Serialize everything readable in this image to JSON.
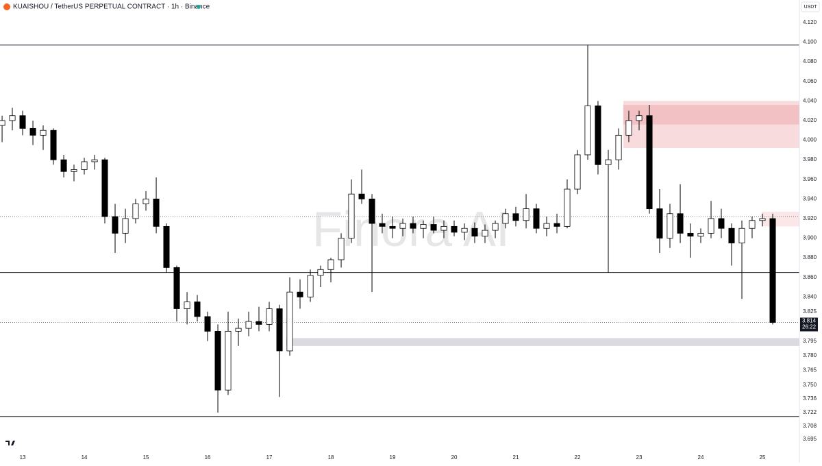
{
  "header": {
    "title": "KUAISHOU / TetherUS PERPETUAL CONTRACT · 1h · Binance",
    "currency": "USDT",
    "watermark": "Finora AI"
  },
  "chart_data": {
    "type": "candlestick",
    "xlim": [
      12.633,
      25.6
    ],
    "xticks": [
      13,
      14,
      15,
      16,
      17,
      18,
      19,
      20,
      21,
      22,
      23,
      24,
      25
    ],
    "ylim": [
      3.685,
      4.143
    ],
    "yticks": [
      {
        "value": 4.12,
        "label": "4.120"
      },
      {
        "value": 4.1,
        "label": "4.100"
      },
      {
        "value": 4.08,
        "label": "4.080"
      },
      {
        "value": 4.06,
        "label": "4.060"
      },
      {
        "value": 4.04,
        "label": "4.040"
      },
      {
        "value": 4.02,
        "label": "4.020"
      },
      {
        "value": 4,
        "label": "4.000"
      },
      {
        "value": 3.98,
        "label": "3.980"
      },
      {
        "value": 3.96,
        "label": "3.960"
      },
      {
        "value": 3.94,
        "label": "3.940"
      },
      {
        "value": 3.92,
        "label": "3.920"
      },
      {
        "value": 3.9,
        "label": "3.900"
      },
      {
        "value": 3.88,
        "label": "3.880"
      },
      {
        "value": 3.86,
        "label": "3.860"
      },
      {
        "value": 3.84,
        "label": "3.840"
      },
      3.825,
      3.795,
      {
        "value": 3.78,
        "label": "3.780"
      },
      3.765,
      {
        "value": 3.75,
        "label": "3.750"
      },
      3.736,
      3.722,
      3.708,
      3.695
    ],
    "up_color": "#ffffff",
    "down_color": "#000000",
    "wick_color": "#000000",
    "x": [
      12.667,
      12.833,
      13.0,
      13.167,
      13.333,
      13.5,
      13.667,
      13.833,
      14.0,
      14.167,
      14.333,
      14.5,
      14.667,
      14.833,
      15.0,
      15.167,
      15.333,
      15.5,
      15.667,
      15.833,
      16.0,
      16.167,
      16.333,
      16.5,
      16.667,
      16.833,
      17.0,
      17.167,
      17.333,
      17.5,
      17.667,
      17.833,
      18.0,
      18.167,
      18.333,
      18.5,
      18.667,
      18.833,
      19.0,
      19.167,
      19.333,
      19.5,
      19.667,
      19.833,
      20.0,
      20.167,
      20.333,
      20.5,
      20.667,
      20.833,
      21.0,
      21.167,
      21.333,
      21.5,
      21.667,
      21.833,
      22.0,
      22.167,
      22.333,
      22.5,
      22.667,
      22.833,
      23.0,
      23.167,
      23.333,
      23.5,
      23.667,
      23.833,
      24.0,
      24.167,
      24.333,
      24.5,
      24.667,
      24.833,
      25.0,
      25.167
    ],
    "open": [
      4.015,
      4.02,
      4.025,
      4.012,
      4.005,
      4.01,
      3.98,
      3.968,
      3.97,
      3.978,
      3.98,
      3.922,
      3.905,
      3.92,
      3.935,
      3.94,
      3.912,
      3.87,
      3.828,
      3.835,
      3.82,
      3.805,
      3.745,
      3.805,
      3.808,
      3.815,
      3.812,
      3.828,
      3.785,
      3.845,
      3.84,
      3.862,
      3.868,
      3.878,
      3.9,
      3.945,
      3.94,
      3.915,
      3.912,
      3.91,
      3.915,
      3.91,
      3.914,
      3.908,
      3.912,
      3.906,
      3.91,
      3.902,
      3.908,
      3.915,
      3.925,
      3.918,
      3.93,
      3.91,
      3.915,
      3.912,
      3.95,
      3.985,
      4.035,
      3.975,
      3.98,
      4.005,
      4.02,
      4.025,
      3.93,
      3.9,
      3.925,
      3.905,
      3.902,
      3.905,
      3.92,
      3.91,
      3.895,
      3.91,
      3.918,
      3.92
    ],
    "high": [
      4.025,
      4.033,
      4.03,
      4.02,
      4.015,
      4.012,
      3.985,
      3.975,
      3.982,
      3.985,
      3.982,
      3.935,
      3.93,
      3.94,
      3.948,
      3.962,
      3.915,
      3.872,
      3.845,
      3.842,
      3.825,
      3.812,
      3.825,
      3.818,
      3.825,
      3.83,
      3.835,
      3.832,
      3.86,
      3.858,
      3.868,
      3.872,
      3.88,
      3.905,
      3.96,
      3.97,
      3.945,
      3.925,
      3.922,
      3.92,
      3.922,
      3.918,
      3.922,
      3.918,
      3.918,
      3.915,
      3.916,
      3.914,
      3.918,
      3.93,
      3.932,
      3.945,
      3.935,
      3.922,
      3.925,
      3.96,
      3.99,
      4.097,
      4.04,
      3.99,
      4.012,
      4.03,
      4.03,
      4.036,
      3.95,
      3.935,
      3.955,
      3.915,
      3.91,
      3.938,
      3.93,
      3.915,
      3.918,
      3.922,
      3.925,
      3.925
    ],
    "low": [
      3.998,
      4.01,
      4.005,
      3.995,
      3.99,
      3.975,
      3.962,
      3.958,
      3.965,
      3.97,
      3.915,
      3.885,
      3.895,
      3.915,
      3.928,
      3.905,
      3.865,
      3.815,
      3.812,
      3.815,
      3.795,
      3.722,
      3.74,
      3.79,
      3.8,
      3.805,
      3.805,
      3.738,
      3.78,
      3.828,
      3.835,
      3.85,
      3.855,
      3.87,
      3.895,
      3.935,
      3.845,
      3.905,
      3.9,
      3.902,
      3.905,
      3.9,
      3.905,
      3.9,
      3.902,
      3.898,
      3.895,
      3.895,
      3.9,
      3.91,
      3.912,
      3.91,
      3.905,
      3.902,
      3.905,
      3.91,
      3.945,
      3.98,
      3.965,
      3.865,
      3.97,
      3.998,
      4.01,
      3.925,
      3.885,
      3.89,
      3.895,
      3.88,
      3.895,
      3.9,
      3.9,
      3.872,
      3.838,
      3.9,
      3.912,
      3.812
    ],
    "close": [
      4.02,
      4.025,
      4.012,
      4.005,
      4.01,
      3.98,
      3.968,
      3.97,
      3.978,
      3.98,
      3.922,
      3.905,
      3.92,
      3.935,
      3.94,
      3.912,
      3.87,
      3.828,
      3.835,
      3.82,
      3.805,
      3.745,
      3.805,
      3.808,
      3.815,
      3.812,
      3.828,
      3.785,
      3.845,
      3.84,
      3.862,
      3.868,
      3.878,
      3.9,
      3.945,
      3.94,
      3.915,
      3.912,
      3.91,
      3.915,
      3.91,
      3.914,
      3.908,
      3.912,
      3.906,
      3.91,
      3.902,
      3.908,
      3.915,
      3.925,
      3.918,
      3.93,
      3.91,
      3.915,
      3.912,
      3.95,
      3.985,
      4.035,
      3.975,
      3.98,
      4.005,
      4.02,
      4.025,
      3.93,
      3.9,
      3.925,
      3.905,
      3.902,
      3.905,
      3.92,
      3.91,
      3.895,
      3.91,
      3.918,
      3.92,
      3.814
    ],
    "levels": [
      {
        "value": 4.097,
        "style": "solid",
        "color": "#131722"
      },
      {
        "value": 3.865,
        "style": "solid",
        "color": "#131722"
      },
      {
        "value": 3.718,
        "style": "solid",
        "color": "#131722"
      },
      {
        "value": 3.922,
        "style": "dotted",
        "color": "#787b86"
      },
      {
        "value": 3.814,
        "style": "dotted",
        "color": "#787b86"
      }
    ],
    "zones": [
      {
        "x": [
          22.744,
          25.6
        ],
        "y": [
          3.992,
          4.04
        ],
        "color": "rgba(220,90,100,0.22)"
      },
      {
        "x": [
          22.744,
          25.6
        ],
        "y": [
          4.016,
          4.036
        ],
        "color": "rgba(220,90,100,0.2)"
      },
      {
        "x": [
          24.99,
          25.6
        ],
        "y": [
          3.912,
          3.927
        ],
        "color": "rgba(240,120,130,0.18)"
      },
      {
        "x": [
          17.278,
          25.6
        ],
        "y": [
          3.79,
          3.798
        ],
        "color": "rgba(150,150,165,0.35)"
      }
    ],
    "last_price": 3.814,
    "countdown": "26:22"
  }
}
